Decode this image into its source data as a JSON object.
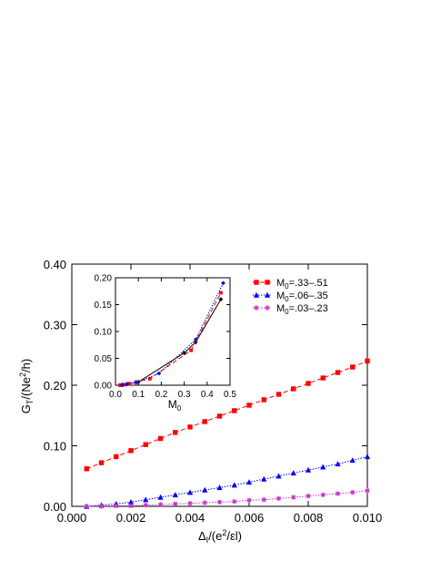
{
  "chart_data": [
    {
      "type": "line",
      "title": "",
      "xlabel": "Δ_I/(e²/εl)",
      "ylabel": "G_T/(Ne²/h)",
      "xlim": [
        0.0,
        0.01
      ],
      "ylim": [
        0.0,
        0.4
      ],
      "xticks": [
        "0.000",
        "0.002",
        "0.004",
        "0.006",
        "0.008",
        "0.010"
      ],
      "yticks": [
        "0.00",
        "0.10",
        "0.20",
        "0.30",
        "0.40"
      ],
      "grid": false,
      "legend_position": "top-right",
      "series": [
        {
          "name": "M0=.33-.51",
          "color": "#ff0000",
          "marker": "square",
          "dash": "dashed",
          "x": [
            0.0005,
            0.001,
            0.0015,
            0.002,
            0.0025,
            0.003,
            0.0035,
            0.004,
            0.0045,
            0.005,
            0.0055,
            0.006,
            0.0065,
            0.007,
            0.0075,
            0.008,
            0.0085,
            0.009,
            0.0095,
            0.01
          ],
          "y": [
            0.062,
            0.072,
            0.082,
            0.092,
            0.102,
            0.112,
            0.122,
            0.131,
            0.14,
            0.149,
            0.158,
            0.167,
            0.176,
            0.185,
            0.194,
            0.203,
            0.212,
            0.221,
            0.23,
            0.24
          ]
        },
        {
          "name": "M0=.06-.35",
          "color": "#0000ff",
          "marker": "triangle",
          "dash": "dotted",
          "x": [
            0.0005,
            0.001,
            0.0015,
            0.002,
            0.0025,
            0.003,
            0.0035,
            0.004,
            0.0045,
            0.005,
            0.0055,
            0.006,
            0.0065,
            0.007,
            0.0075,
            0.008,
            0.0085,
            0.009,
            0.0095,
            0.01
          ],
          "y": [
            0.0,
            0.002,
            0.004,
            0.007,
            0.011,
            0.015,
            0.019,
            0.023,
            0.027,
            0.031,
            0.035,
            0.04,
            0.045,
            0.05,
            0.055,
            0.06,
            0.065,
            0.07,
            0.076,
            0.082
          ]
        },
        {
          "name": "M0=.03-.23",
          "color": "#cc33cc",
          "marker": "star",
          "dash": "dotted",
          "x": [
            0.0005,
            0.001,
            0.0015,
            0.002,
            0.0025,
            0.003,
            0.0035,
            0.004,
            0.0045,
            0.005,
            0.0055,
            0.006,
            0.0065,
            0.007,
            0.0075,
            0.008,
            0.0085,
            0.009,
            0.0095,
            0.01
          ],
          "y": [
            0.0,
            0.0,
            0.001,
            0.001,
            0.002,
            0.003,
            0.004,
            0.005,
            0.006,
            0.007,
            0.008,
            0.01,
            0.011,
            0.013,
            0.015,
            0.017,
            0.019,
            0.021,
            0.023,
            0.026
          ]
        }
      ]
    },
    {
      "type": "line",
      "title": "",
      "xlabel": "M0",
      "ylabel": "",
      "xlim": [
        0.0,
        0.5
      ],
      "ylim": [
        0.0,
        0.2
      ],
      "xticks": [
        "0.0",
        "0.1",
        "0.2",
        "0.3",
        "0.4",
        "0.5"
      ],
      "yticks": [
        "0.00",
        "0.05",
        "0.10",
        "0.15",
        "0.20"
      ],
      "grid": false,
      "series": [
        {
          "color": "#000000",
          "marker": "diamond",
          "dash": "solid",
          "x": [
            0.02,
            0.03,
            0.05,
            0.1,
            0.3,
            0.35,
            0.46
          ],
          "y": [
            0.0,
            0.0,
            0.002,
            0.006,
            0.06,
            0.08,
            0.16
          ]
        },
        {
          "color": "#ff0000",
          "marker": "square",
          "dash": "dashed",
          "x": [
            0.02,
            0.04,
            0.06,
            0.09,
            0.15,
            0.33,
            0.46
          ],
          "y": [
            0.0,
            0.001,
            0.003,
            0.006,
            0.012,
            0.065,
            0.172
          ]
        },
        {
          "color": "#0000ff",
          "marker": "diamond",
          "dash": "dotted",
          "x": [
            0.03,
            0.05,
            0.09,
            0.19,
            0.35,
            0.47
          ],
          "y": [
            0.001,
            0.002,
            0.005,
            0.022,
            0.085,
            0.19
          ]
        }
      ]
    }
  ]
}
